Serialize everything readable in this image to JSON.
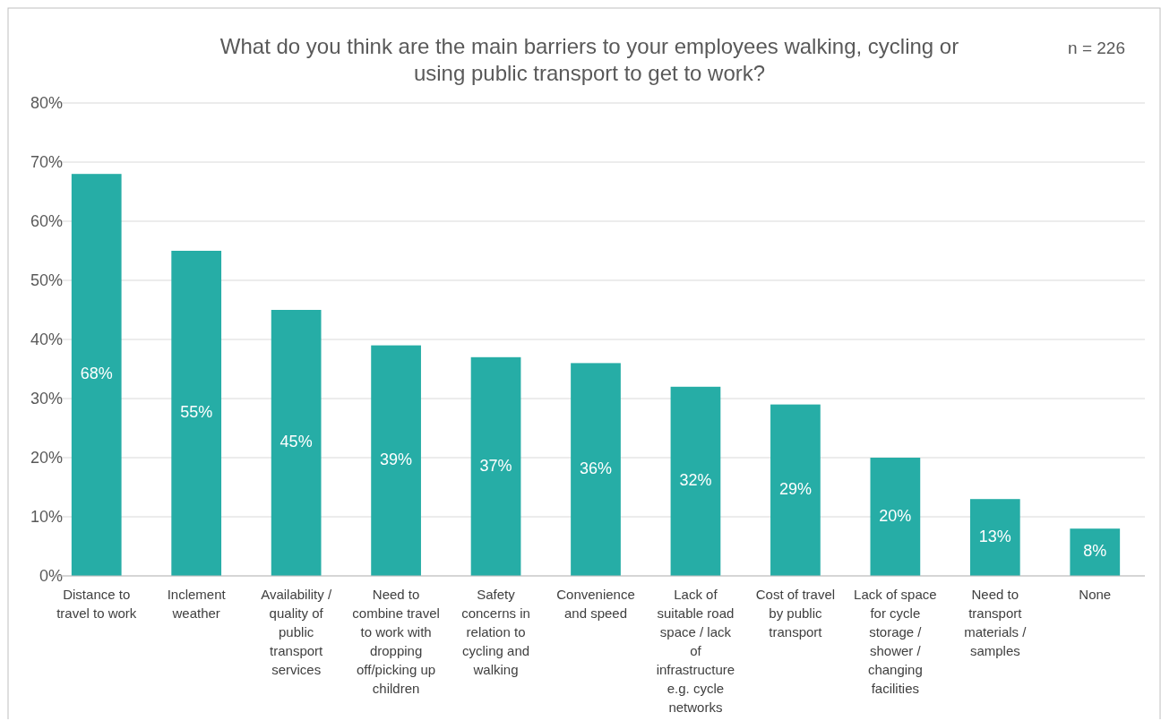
{
  "chart_data": {
    "type": "bar",
    "title": "What do you think are the main barriers to your employees walking, cycling or using public transport to get to work?",
    "annotations": [
      "n = 226"
    ],
    "categories": [
      "Distance to travel to work",
      "Inclement weather",
      "Availability / quality of public transport services",
      "Need to combine travel to work with dropping off/picking up children",
      "Safety concerns in relation to cycling and walking",
      "Convenience and speed",
      "Lack of suitable road space / lack of infrastructure e.g. cycle networks",
      "Cost of travel by public transport",
      "Lack of space for cycle storage / shower / changing facilities",
      "Need to transport materials / samples",
      "None"
    ],
    "values": [
      68,
      55,
      45,
      39,
      37,
      36,
      32,
      29,
      20,
      13,
      8
    ],
    "value_labels": [
      "68%",
      "55%",
      "45%",
      "39%",
      "37%",
      "36%",
      "32%",
      "29%",
      "20%",
      "13%",
      "8%"
    ],
    "color": "#26ada6",
    "ylim": [
      0,
      80
    ],
    "yticks": [
      {
        "value": 0,
        "label": "0%"
      },
      {
        "value": 10,
        "label": "10%"
      },
      {
        "value": 20,
        "label": "20%"
      },
      {
        "value": 30,
        "label": "30%"
      },
      {
        "value": 40,
        "label": "40%"
      },
      {
        "value": 50,
        "label": "50%"
      },
      {
        "value": 60,
        "label": "60%"
      },
      {
        "value": 70,
        "label": "70%"
      },
      {
        "value": 80,
        "label": "80%"
      }
    ],
    "grid": "y"
  }
}
